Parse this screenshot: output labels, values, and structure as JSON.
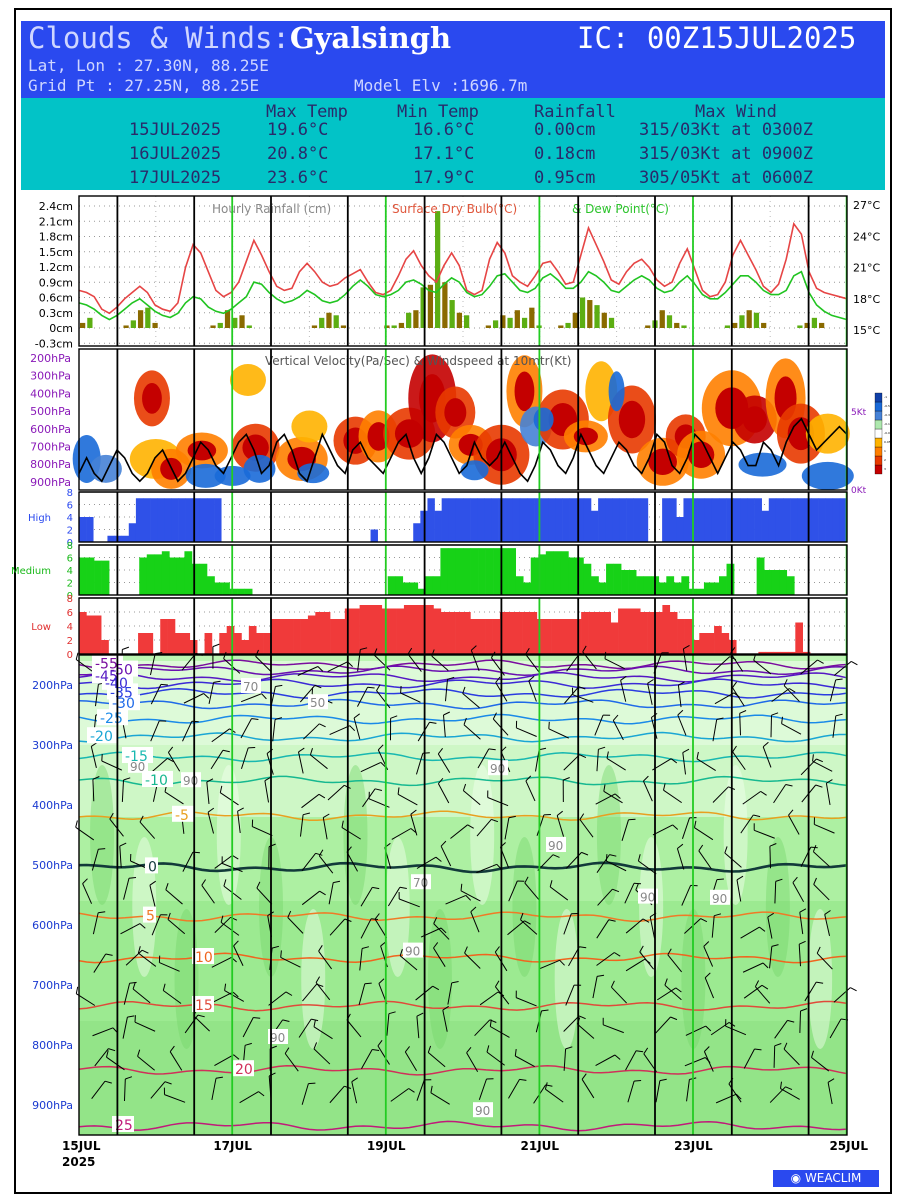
{
  "header": {
    "title_prefix": "Clouds & Winds:",
    "location": "Gyalsingh",
    "ic": "IC: 00Z15JUL2025",
    "latlon": "Lat, Lon : 27.30N, 88.25E",
    "gridpt": "Grid Pt  : 27.25N, 88.25E",
    "elev": "Model Elv :1696.7m"
  },
  "summary": {
    "columns": [
      "Max Temp",
      "Min Temp",
      "Rainfall",
      "Max Wind"
    ],
    "rows": [
      {
        "date": "15JUL2025",
        "max": "19.6°C",
        "min": "16.6°C",
        "rain": "0.00cm",
        "wind": "315/03Kt at 0300Z"
      },
      {
        "date": "16JUL2025",
        "max": "20.8°C",
        "min": "17.1°C",
        "rain": "0.18cm",
        "wind": "315/03Kt at 0900Z"
      },
      {
        "date": "17JUL2025",
        "max": "23.6°C",
        "min": "17.9°C",
        "rain": "0.95cm",
        "wind": "305/05Kt at 0600Z"
      }
    ]
  },
  "x_labels": [
    {
      "day": 0,
      "text": "15JUL"
    },
    {
      "day": 2,
      "text": "17JUL"
    },
    {
      "day": 4,
      "text": "19JUL"
    },
    {
      "day": 6,
      "text": "21JUL"
    },
    {
      "day": 8,
      "text": "23JUL"
    },
    {
      "day": 10,
      "text": "25JUL"
    }
  ],
  "x_year": "2025",
  "logo": "WEACLIM",
  "chart_data": [
    {
      "type": "bar",
      "title": "Hourly Rainfall (cm)",
      "title2": "Surface Dry Bulb(°C)",
      "title3": "& Dew Point(°C)",
      "y_ticks_left": [
        "2.4cm",
        "2.1cm",
        "1.8cm",
        "1.5cm",
        "1.2cm",
        "0.9cm",
        "0.6cm",
        "0.3cm",
        "0cm",
        "-0.3cm"
      ],
      "y_ticks_right": [
        "27°C",
        "24°C",
        "21°C",
        "18°C",
        "15°C"
      ],
      "rain_cm": [
        0.1,
        0.2,
        0,
        0,
        0,
        0,
        0.05,
        0.15,
        0.35,
        0.4,
        0.1,
        0,
        0,
        0,
        0,
        0,
        0,
        0,
        0.05,
        0.1,
        0.35,
        0.2,
        0.25,
        0.05,
        0,
        0,
        0,
        0,
        0,
        0,
        0,
        0,
        0.05,
        0.2,
        0.3,
        0.25,
        0.05,
        0,
        0,
        0,
        0,
        0,
        0.05,
        0.05,
        0.1,
        0.3,
        0.35,
        0.8,
        0.85,
        2.3,
        0.9,
        0.55,
        0.3,
        0.25,
        0,
        0,
        0.05,
        0.15,
        0.25,
        0.2,
        0.35,
        0.2,
        0.4,
        0.05,
        0,
        0,
        0.05,
        0.1,
        0.3,
        0.6,
        0.55,
        0.45,
        0.3,
        0.2,
        0,
        0,
        0,
        0,
        0.05,
        0.15,
        0.35,
        0.25,
        0.1,
        0.05,
        0,
        0,
        0,
        0,
        0,
        0.05,
        0.1,
        0.25,
        0.35,
        0.3,
        0.1,
        0,
        0,
        0,
        0,
        0.05,
        0.1,
        0.2,
        0.1,
        0,
        0,
        0
      ],
      "drybulb_c": [
        18.8,
        18.6,
        18.2,
        17,
        16.6,
        17.2,
        18,
        18.6,
        19.2,
        18.6,
        17.4,
        17,
        16.8,
        17.6,
        21,
        23.2,
        22.4,
        20.6,
        18.8,
        18.2,
        18.6,
        19.6,
        21.6,
        23.6,
        22.2,
        20.6,
        19.2,
        18.8,
        19,
        20.6,
        21.4,
        20.6,
        19.6,
        19.2,
        19.4,
        20,
        20.4,
        20.8,
        19.6,
        18.6,
        18.4,
        18.8,
        20.2,
        21.8,
        22.6,
        21.2,
        20.2,
        19.6,
        21.2,
        22.4,
        21.2,
        18.8,
        18.4,
        18.8,
        21.8,
        23.4,
        22.4,
        20.2,
        19.6,
        19.2,
        20.2,
        21.4,
        21.6,
        20.6,
        19.4,
        19.6,
        22.2,
        24.8,
        23.2,
        21.6,
        19.8,
        19.4,
        20.6,
        21.4,
        21.8,
        21,
        19.8,
        19.2,
        19.6,
        21.4,
        22.8,
        20.8,
        18.8,
        18.2,
        18.4,
        19.6,
        22.2,
        23.6,
        22.2,
        20.8,
        19.2,
        18.6,
        19.4,
        21.8,
        25.2,
        24.2,
        20.6,
        19,
        18.6,
        18.4,
        18.2,
        18
      ],
      "dewpoint_c": [
        17.6,
        17.4,
        17,
        16.4,
        16,
        16.4,
        17,
        17.6,
        18,
        17.4,
        16.8,
        16.4,
        16.2,
        16.6,
        17.6,
        18.2,
        18,
        17.2,
        16.8,
        16.6,
        17,
        17.6,
        18.2,
        19.6,
        19.4,
        18.6,
        18,
        17.6,
        17.8,
        18.2,
        18.8,
        18.4,
        17.8,
        17.6,
        17.8,
        18.4,
        19.2,
        19.8,
        19.2,
        18.4,
        18.2,
        18.4,
        18.8,
        19.6,
        19.8,
        19.4,
        18.8,
        18.6,
        19.4,
        20,
        19.6,
        18.6,
        18.2,
        18.4,
        19.2,
        20.2,
        20.4,
        19.6,
        18.8,
        18.6,
        19,
        20,
        20.4,
        19.8,
        19,
        19,
        19.6,
        20.6,
        20.2,
        19.6,
        18.8,
        18.6,
        19.2,
        19.8,
        20.2,
        19.8,
        19,
        18.6,
        18.8,
        19.6,
        20.2,
        19.4,
        18.4,
        18,
        18,
        18.6,
        19.4,
        20.2,
        20.2,
        19.6,
        18.8,
        18.4,
        18.4,
        18.8,
        20.2,
        20.6,
        18.6,
        17.4,
        16.8,
        16.4,
        16.2,
        16
      ]
    },
    {
      "type": "heatmap",
      "title": "Vertical Velocity(Pa/Sec) & Windspeed at 10mtr(Kt)",
      "y_ticks": [
        "200hPa",
        "300hPa",
        "400hPa",
        "500hPa",
        "600hPa",
        "700hPa",
        "800hPa",
        "900hPa"
      ],
      "right_ticks": [
        "5Kt",
        "0Kt"
      ],
      "legend_labels": [
        "3",
        "2",
        "1",
        "0.05",
        "-0.05",
        "-0.15",
        "-0.3",
        "-0.5",
        "-1"
      ],
      "windspeed_kt": [
        1,
        2,
        1,
        0.5,
        1.5,
        2.5,
        2,
        1,
        0.5,
        1,
        2,
        2.5,
        1.5,
        0.5,
        1,
        2,
        3,
        2.5,
        1.5,
        1,
        2,
        3,
        3.5,
        2.5,
        1,
        1.5,
        3,
        3.5,
        2.5,
        1,
        0.5,
        2,
        3.5,
        2.5,
        1.5,
        1,
        2.5,
        3,
        2,
        1.5,
        1,
        2,
        3,
        3.5,
        2,
        1,
        2,
        3.5,
        3,
        2,
        1,
        1.5,
        3,
        2,
        1.5,
        2,
        3,
        2,
        1,
        0.5,
        1.5,
        3,
        2.5,
        1.5,
        1,
        2,
        3.5,
        2.5,
        1.5,
        1,
        2,
        3,
        2.5,
        1.5,
        1,
        2,
        3.5,
        3,
        1.5,
        1,
        2,
        3.5,
        3,
        2,
        1,
        2,
        3,
        2.5,
        1.5,
        1.5,
        3,
        2.5,
        1.5,
        3,
        4,
        4.5,
        3.5,
        2.5,
        3,
        3.5,
        4,
        3.5
      ]
    },
    {
      "type": "bar",
      "title": "High",
      "y_ticks": [
        "8",
        "6",
        "4",
        "2",
        "0"
      ],
      "values_okta": [
        4,
        4,
        0,
        0,
        1,
        1,
        1,
        3,
        7,
        7,
        7,
        7,
        7,
        7,
        7,
        7,
        7,
        7,
        7,
        7,
        0,
        0,
        0,
        0,
        0,
        0,
        0,
        0,
        0,
        0,
        0,
        0,
        0,
        0,
        0,
        0,
        0,
        0,
        0,
        0,
        0,
        2,
        0,
        0,
        0,
        0,
        0,
        3,
        5,
        7,
        5,
        7,
        7,
        7,
        7,
        7,
        7,
        7,
        7,
        7,
        7,
        7,
        7,
        7,
        7,
        7,
        7,
        7,
        7,
        7,
        7,
        7,
        5,
        7,
        7,
        7,
        7,
        7,
        7,
        7,
        0,
        0,
        7,
        7,
        4,
        7,
        7,
        7,
        7,
        7,
        7,
        7,
        7,
        7,
        7,
        7,
        5,
        7,
        7,
        7,
        7,
        7,
        7,
        7,
        7,
        7,
        7,
        7
      ]
    },
    {
      "type": "bar",
      "title": "Medium",
      "y_ticks": [
        "8",
        "6",
        "4",
        "2",
        "0"
      ],
      "values_okta": [
        6,
        6,
        5.5,
        5.5,
        0,
        0,
        0,
        0,
        6,
        6.5,
        6.5,
        7,
        6,
        6,
        7,
        5,
        5,
        3,
        2,
        2,
        1,
        1,
        1,
        0,
        0,
        0,
        0,
        0,
        0,
        0,
        0,
        0,
        0,
        0,
        0,
        0,
        0,
        0,
        0,
        0,
        0,
        3,
        3,
        2,
        2,
        1,
        3,
        3,
        7.5,
        7.5,
        7.5,
        7.5,
        7.5,
        7.5,
        7.5,
        7.5,
        7.5,
        7.5,
        3,
        2,
        6,
        6.5,
        7,
        7,
        7,
        6,
        6,
        5,
        3,
        2,
        5,
        5,
        4,
        4,
        3,
        3,
        3,
        2,
        3,
        2,
        3,
        1,
        1,
        2,
        2,
        3,
        5,
        0,
        0,
        0,
        6,
        4,
        4,
        4,
        3,
        0,
        0,
        0,
        0,
        0,
        0,
        0
      ]
    },
    {
      "type": "bar",
      "title": "Low",
      "y_ticks": [
        "8",
        "6",
        "4",
        "2",
        "0"
      ],
      "values_okta": [
        6,
        5.5,
        5.5,
        2,
        0,
        0,
        0,
        0,
        3,
        3,
        0,
        5,
        5,
        3,
        3,
        2,
        0,
        3,
        0,
        3,
        4,
        3,
        2,
        4,
        3,
        3,
        5,
        5,
        5,
        5,
        5,
        5.5,
        6,
        6,
        5,
        5,
        6.5,
        6.5,
        7,
        7,
        7,
        6.5,
        6.5,
        6.5,
        7,
        7,
        7,
        7,
        6.5,
        6,
        6,
        6,
        6,
        5,
        5,
        5,
        5,
        6,
        6,
        6,
        6,
        6,
        5,
        5,
        5,
        5,
        5,
        5,
        6,
        6,
        6,
        6,
        4.5,
        6.5,
        6.5,
        6.5,
        6,
        6,
        6,
        7,
        6,
        5,
        5,
        2,
        3,
        3,
        4,
        3,
        2,
        0,
        0,
        0,
        0.3,
        0.3,
        0.3,
        0.3,
        0.3,
        4.5,
        0.3,
        0,
        0,
        0,
        0,
        0
      ]
    },
    {
      "type": "heatmap",
      "title": "Temperature, Relative Humidity & Winds",
      "y_ticks": [
        "200hPa",
        "300hPa",
        "400hPa",
        "500hPa",
        "600hPa",
        "700hPa",
        "800hPa",
        "900hPa"
      ],
      "isotherm_labels": [
        "-55",
        "-50",
        "-45",
        "-40",
        "-35",
        "-30",
        "-25",
        "-20",
        "-15",
        "-10",
        "-5",
        "0",
        "5",
        "10",
        "15",
        "20",
        "25"
      ],
      "rh_labels": [
        "50",
        "70",
        "90"
      ],
      "isotherms_hpa": [
        {
          "t": -55,
          "p": 166
        },
        {
          "t": -50,
          "p": 176
        },
        {
          "t": -45,
          "p": 187
        },
        {
          "t": -40,
          "p": 198
        },
        {
          "t": -35,
          "p": 214
        },
        {
          "t": -30,
          "p": 232
        },
        {
          "t": -25,
          "p": 257
        },
        {
          "t": -20,
          "p": 287
        },
        {
          "t": -15,
          "p": 320
        },
        {
          "t": -10,
          "p": 360
        },
        {
          "t": -5,
          "p": 418
        },
        {
          "t": 0,
          "p": 504
        },
        {
          "t": 5,
          "p": 586
        },
        {
          "t": 10,
          "p": 655
        },
        {
          "t": 15,
          "p": 735
        },
        {
          "t": 20,
          "p": 842
        },
        {
          "t": 25,
          "p": 935
        }
      ]
    }
  ]
}
